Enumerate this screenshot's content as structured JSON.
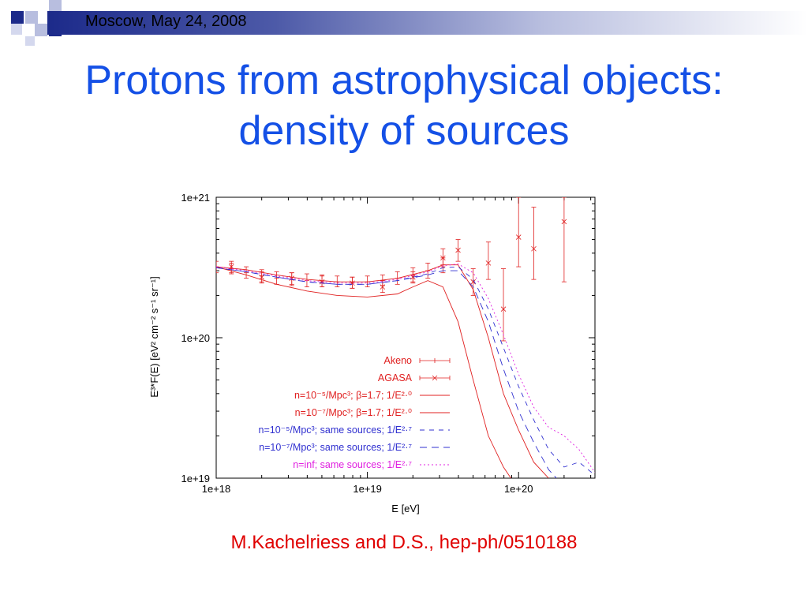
{
  "header": {
    "text": "Moscow, May 24, 2008"
  },
  "title": {
    "line1": "Protons from astrophysical objects:",
    "line2": "density of sources"
  },
  "credit": "M.Kachelriess and D.S., hep-ph/0510188",
  "colors": {
    "title": "#1450e6",
    "credit": "#e00000",
    "red": "#e02020",
    "blue": "#3030d0",
    "magenta": "#e020e0",
    "deco_navy": "#1c2a8a",
    "deco_light": "#b8bedf"
  },
  "chart_data": {
    "type": "line",
    "xlabel": "E [eV]",
    "ylabel": "E³*F(E) [eV² cm⁻² s⁻¹ sr⁻¹]",
    "x_scale": "log",
    "y_scale": "log",
    "xlim": [
      1e+18,
      3.2e+20
    ],
    "ylim": [
      1e+19,
      1e+21
    ],
    "x_ticks": [
      "1e+18",
      "1e+19",
      "1e+20"
    ],
    "y_ticks": [
      "1e+21",
      "1e+20",
      "1e+19"
    ],
    "legend_position": "bottom-right",
    "series": [
      {
        "name": "Akeno",
        "kind": "errorbar-plus",
        "color": "#e02020",
        "x": [
          1e+18,
          1.26e+18,
          1.58e+18,
          2e+18,
          2.51e+18,
          3.16e+18,
          3.98e+18,
          5.01e+18,
          6.31e+18,
          7.94e+18,
          1e+19,
          1.26e+19,
          1.58e+19,
          2e+19,
          2.51e+19,
          3.16e+19
        ],
        "y": [
          3.2e+20,
          3.1e+20,
          2.9e+20,
          2.75e+20,
          2.65e+20,
          2.6e+20,
          2.55e+20,
          2.5e+20,
          2.5e+20,
          2.45e+20,
          2.5e+20,
          2.55e+20,
          2.65e+20,
          2.8e+20,
          3e+20,
          3.3e+20
        ],
        "ylo": [
          2.9e+20,
          2.85e+20,
          2.65e+20,
          2.5e+20,
          2.4e+20,
          2.35e+20,
          2.3e+20,
          2.3e+20,
          2.3e+20,
          2.25e+20,
          2.3e+20,
          2.35e+20,
          2.4e+20,
          2.5e+20,
          2.65e+20,
          2.9e+20
        ],
        "yhi": [
          3.5e+20,
          3.4e+20,
          3.2e+20,
          3.05e+20,
          2.95e+20,
          2.9e+20,
          2.85e+20,
          2.8e+20,
          2.75e+20,
          2.7e+20,
          2.75e+20,
          2.8e+20,
          2.95e+20,
          3.15e+20,
          3.4e+20,
          3.7e+20
        ]
      },
      {
        "name": "AGASA",
        "kind": "errorbar-x",
        "color": "#e02020",
        "x": [
          1.26e+18,
          2e+18,
          3.16e+18,
          5.01e+18,
          7.94e+18,
          1.26e+19,
          2e+19,
          3.16e+19,
          3.98e+19,
          5.01e+19,
          6.31e+19,
          7.94e+19,
          1e+20,
          1.26e+20,
          2e+20
        ],
        "y": [
          3.2e+20,
          2.7e+20,
          2.65e+20,
          2.5e+20,
          2.45e+20,
          2.3e+20,
          2.7e+20,
          3.7e+20,
          4.2e+20,
          2.5e+20,
          3.4e+20,
          1.6e+20,
          5.2e+20,
          4.3e+20,
          6.7e+20
        ],
        "ylo": [
          2.9e+20,
          2.45e+20,
          2.4e+20,
          2.3e+20,
          2.25e+20,
          2.1e+20,
          2.45e+20,
          3.2e+20,
          3.5e+20,
          2e+20,
          2.6e+20,
          9.5e+19,
          3.2e+20,
          2.6e+20,
          2.5e+20
        ],
        "yhi": [
          3.5e+20,
          2.95e+20,
          2.9e+20,
          2.75e+20,
          2.7e+20,
          2.55e+20,
          2.95e+20,
          4.3e+20,
          5e+20,
          3.1e+20,
          4.8e+20,
          3.1e+20,
          1e+21,
          8.5e+20,
          1e+21
        ]
      },
      {
        "name": "n=10⁻⁵/Mpc³; β=1.7;  1/E²·⁰",
        "kind": "line",
        "dash": "solid",
        "color": "#e02020",
        "x": [
          1e+18,
          1.58e+18,
          2.51e+18,
          3.98e+18,
          6.31e+18,
          1e+19,
          1.58e+19,
          2.51e+19,
          3.16e+19,
          3.98e+19,
          5.01e+19,
          6.31e+19,
          7.94e+19,
          1e+20,
          1.26e+20,
          1.58e+20
        ],
        "y": [
          3.2e+20,
          3.05e+20,
          2.8e+20,
          2.6e+20,
          2.5e+20,
          2.5e+20,
          2.65e+20,
          3e+20,
          3.3e+20,
          3.3e+20,
          2.2e+20,
          1e+20,
          4e+19,
          2.2e+19,
          1.3e+19,
          1e+19
        ]
      },
      {
        "name": "n=10⁻⁷/Mpc³; β=1.7;  1/E²·⁰",
        "kind": "line",
        "dash": "solid",
        "color": "#e02020",
        "x": [
          1e+18,
          1.58e+18,
          2.51e+18,
          3.98e+18,
          6.31e+18,
          1e+19,
          1.58e+19,
          2e+19,
          2.51e+19,
          3.16e+19,
          3.98e+19,
          5.01e+19,
          6.31e+19,
          7.94e+19,
          8.9e+19
        ],
        "y": [
          3.2e+20,
          2.8e+20,
          2.4e+20,
          2.15e+20,
          2e+20,
          1.95e+20,
          2.05e+20,
          2.3e+20,
          2.55e+20,
          2.3e+20,
          1.3e+20,
          5e+19,
          2e+19,
          1.2e+19,
          1e+19
        ]
      },
      {
        "name": "n=10⁻⁵/Mpc³; same sources;  1/E²·⁷",
        "kind": "line",
        "dash": "6,6",
        "color": "#3030d0",
        "x": [
          1e+18,
          1.58e+18,
          2.51e+18,
          3.98e+18,
          6.31e+18,
          1e+19,
          1.58e+19,
          2.51e+19,
          3.16e+19,
          3.98e+19,
          5.01e+19,
          6.31e+19,
          7.94e+19,
          1e+20,
          1.26e+20,
          1.58e+20,
          2e+20,
          2.51e+20,
          3.2e+20
        ],
        "y": [
          3.15e+20,
          2.95e+20,
          2.7e+20,
          2.5e+20,
          2.4e+20,
          2.4e+20,
          2.55e+20,
          2.85e+20,
          3.15e+20,
          3.2e+20,
          2.6e+20,
          1.6e+20,
          8.5e+19,
          4.5e+19,
          2.6e+19,
          1.6e+19,
          1.2e+19,
          1.3e+19,
          1.05e+19
        ]
      },
      {
        "name": "n=10⁻⁷/Mpc³; same sources;  1/E²·⁷",
        "kind": "line",
        "dash": "9,6",
        "color": "#3030d0",
        "x": [
          1e+18,
          1.58e+18,
          2.51e+18,
          3.98e+18,
          6.31e+18,
          1e+19,
          1.58e+19,
          2.51e+19,
          3.16e+19,
          3.98e+19,
          5.01e+19,
          6.31e+19,
          7.94e+19,
          1e+20,
          1.26e+20,
          1.58e+20,
          1.78e+20
        ],
        "y": [
          3.15e+20,
          2.95e+20,
          2.7e+20,
          2.5e+20,
          2.4e+20,
          2.4e+20,
          2.55e+20,
          2.8e+20,
          3e+20,
          3e+20,
          2.3e+20,
          1.3e+20,
          6e+19,
          3e+19,
          1.8e+19,
          1.15e+19,
          1e+19
        ]
      },
      {
        "name": "n=inf;  same sources; 1/E²·⁷",
        "kind": "line",
        "dash": "2,3",
        "color": "#e020e0",
        "x": [
          1e+18,
          1.58e+18,
          2.51e+18,
          3.98e+18,
          6.31e+18,
          1e+19,
          1.58e+19,
          2.51e+19,
          3.16e+19,
          3.98e+19,
          5.01e+19,
          6.31e+19,
          7.94e+19,
          1e+20,
          1.26e+20,
          1.58e+20,
          2e+20,
          2.51e+20,
          3.2e+20
        ],
        "y": [
          3.2e+20,
          3e+20,
          2.75e+20,
          2.55e+20,
          2.45e+20,
          2.45e+20,
          2.6e+20,
          2.95e+20,
          3.25e+20,
          3.35e+20,
          2.9e+20,
          1.9e+20,
          1.05e+20,
          5.5e+19,
          3.2e+19,
          2.3e+19,
          2e+19,
          1.6e+19,
          1.1e+19
        ]
      }
    ]
  }
}
